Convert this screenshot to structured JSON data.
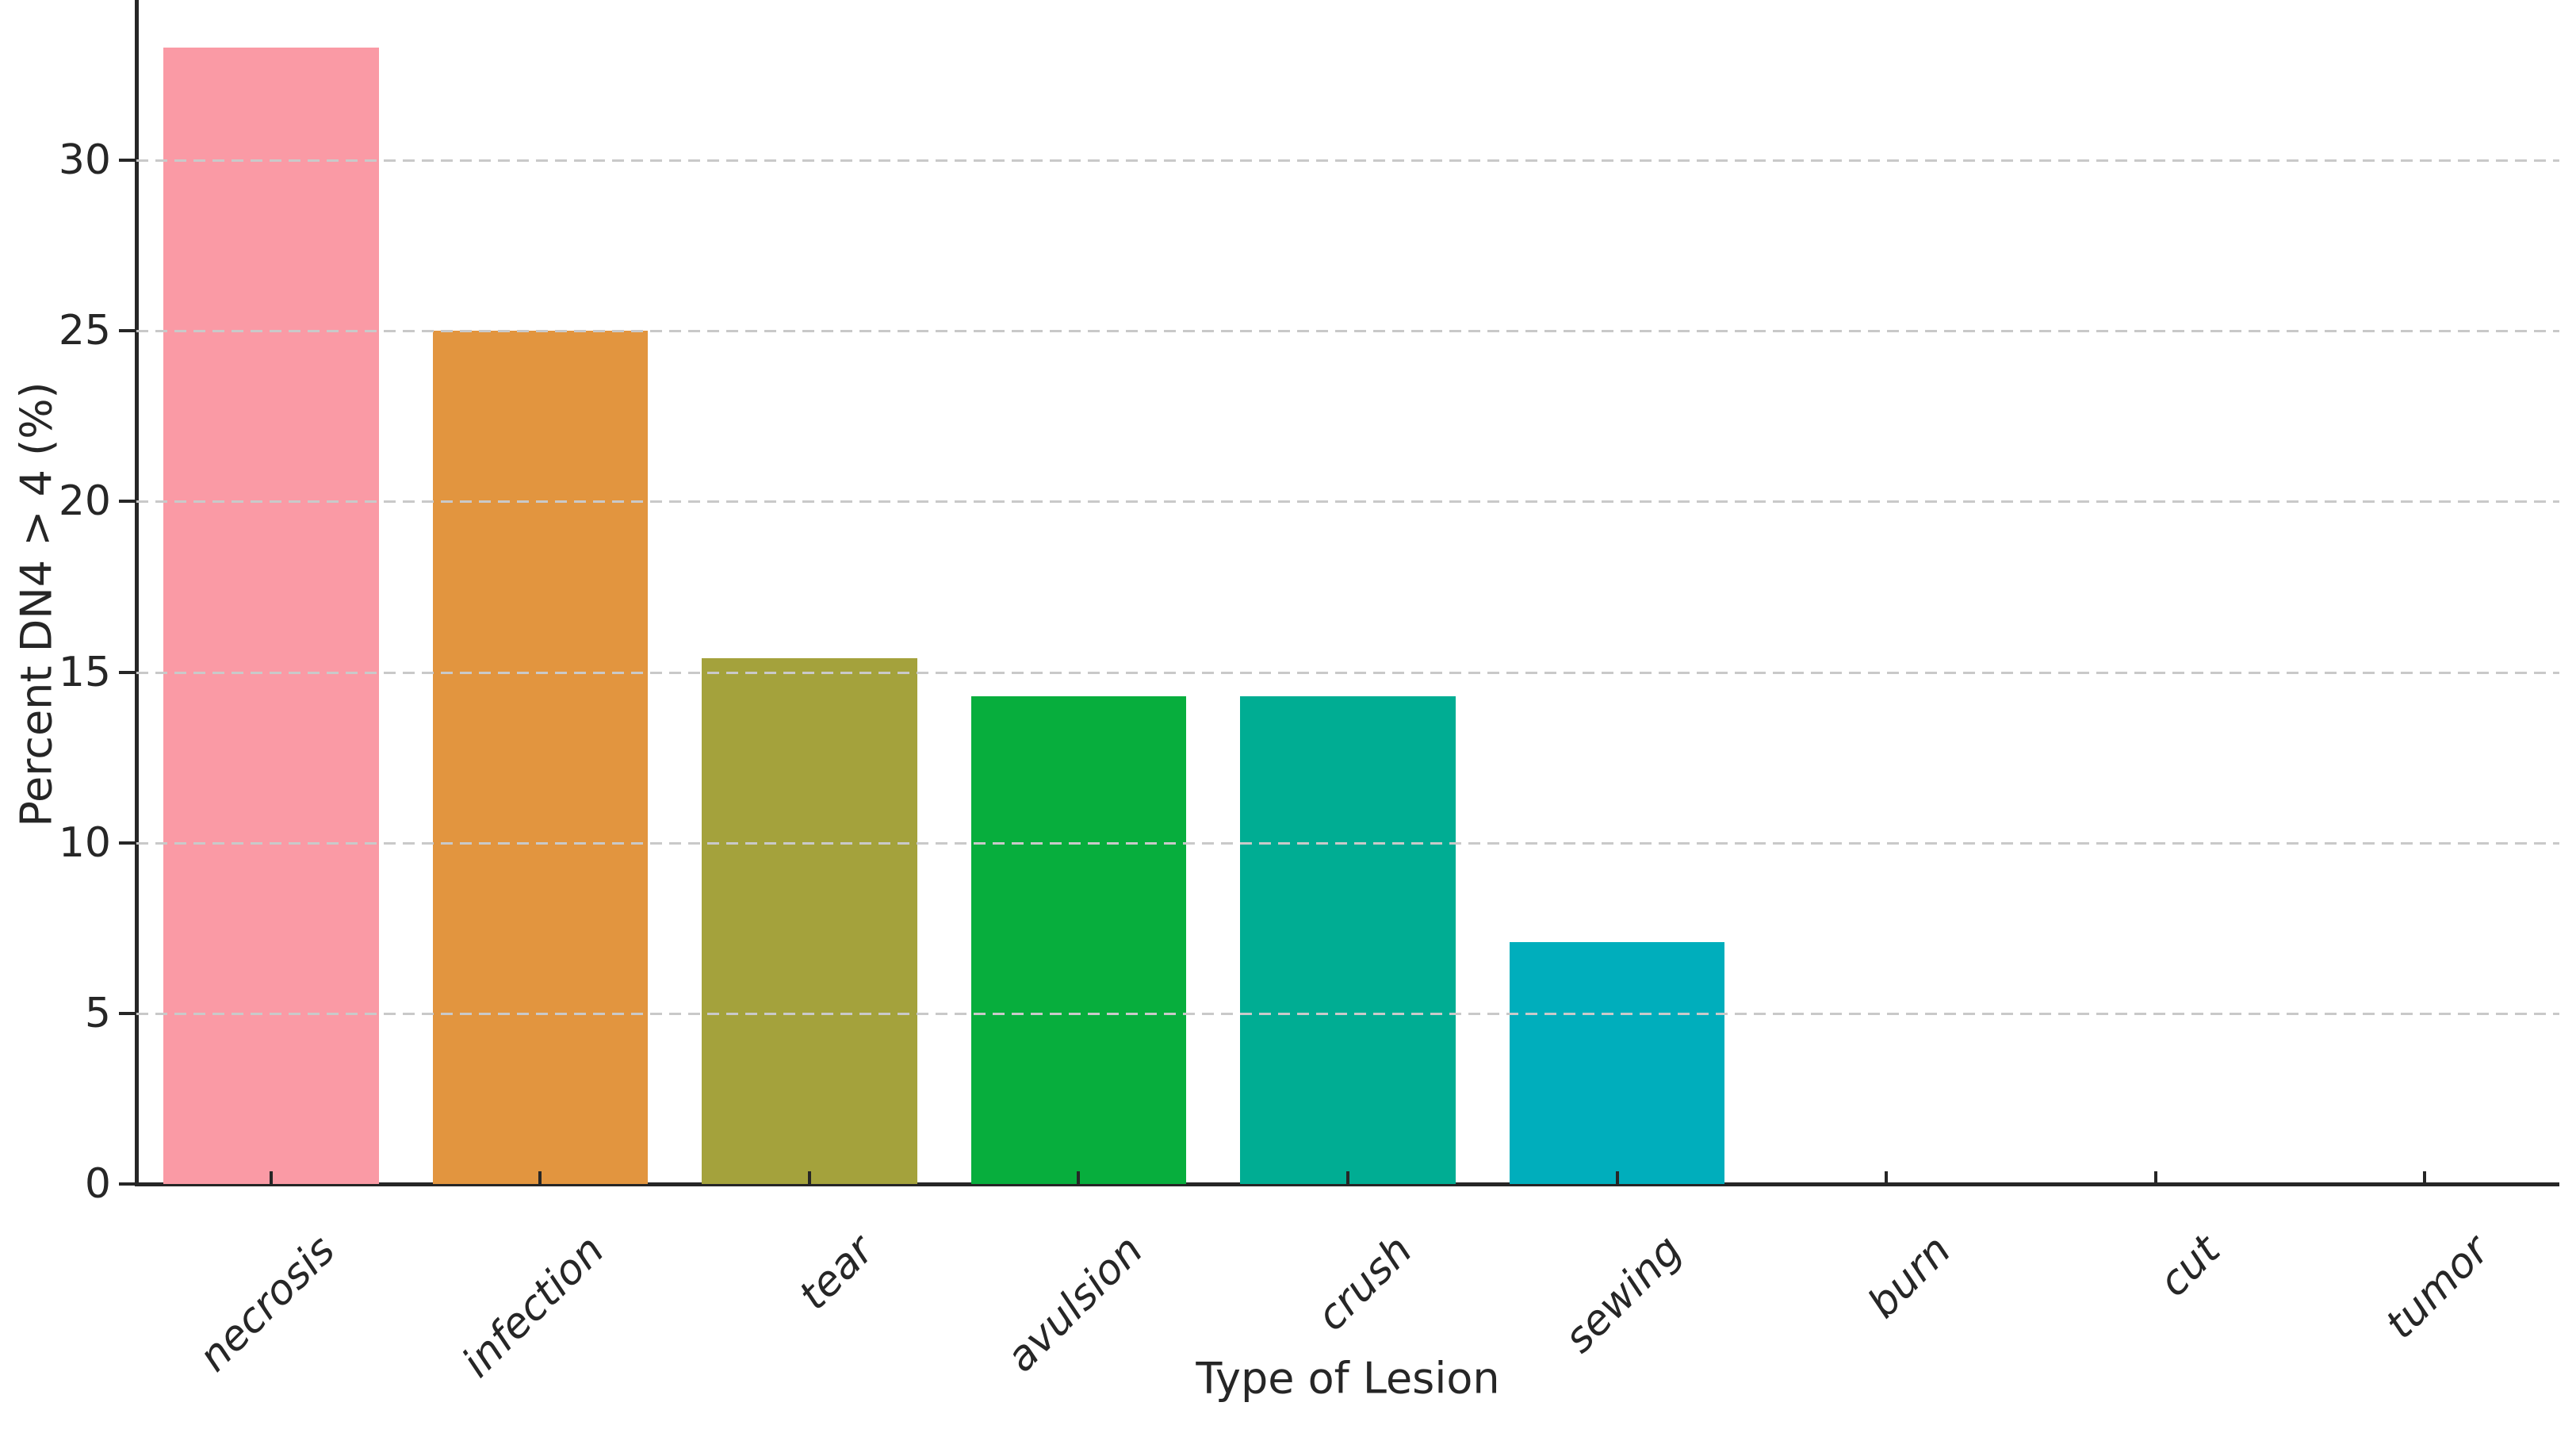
{
  "chart_data": {
    "type": "bar",
    "title": "",
    "xlabel": "Type of Lesion",
    "ylabel": "Percent DN4 > 4 (%)",
    "categories": [
      "necrosis",
      "infection",
      "tear",
      "avulsion",
      "crush",
      "sewing",
      "burn",
      "cut",
      "tumor"
    ],
    "values": [
      33.3,
      25.0,
      15.4,
      14.3,
      14.3,
      7.1,
      0.0,
      0.0,
      0.0
    ],
    "bar_colors": [
      "#fa9aa5",
      "#e2953f",
      "#a4a23c",
      "#07ae3d",
      "#00ad93",
      "#00aebc",
      null,
      null,
      null
    ],
    "yticks": [
      0,
      5,
      10,
      15,
      20,
      25,
      30
    ],
    "ylim": [
      0,
      34.7
    ],
    "bar_width_fraction": 0.8,
    "grid": {
      "axis": "y",
      "style": "dashed",
      "color": "#c9c9c9",
      "drawn_above_bars": true
    },
    "legend": null,
    "background_color": "#ffffff",
    "axis_color": "#262626",
    "x_tick_label_style": "italic, rotated 45 degrees"
  }
}
